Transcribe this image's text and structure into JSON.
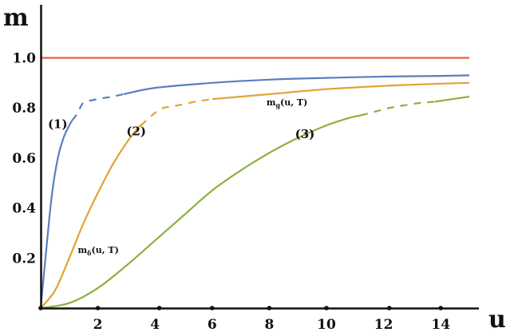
{
  "chart_data": {
    "type": "line",
    "title": "",
    "xlabel": "u",
    "ylabel": "m",
    "xlim": [
      0,
      15.5
    ],
    "ylim": [
      0,
      1.1
    ],
    "grid": false,
    "x_ticks": [
      2,
      4,
      6,
      8,
      10,
      12,
      14
    ],
    "x_tick_labels": [
      "2",
      "4",
      "6",
      "8",
      "10",
      "12",
      "14"
    ],
    "y_ticks": [
      0.2,
      0.4,
      0.6,
      0.8,
      1.0
    ],
    "y_tick_labels": [
      "0.2",
      "0.4",
      "0.6",
      "0.8",
      "1.0"
    ],
    "x_axis_points": [
      0,
      2,
      4.15,
      6,
      8,
      10,
      12.2,
      14
    ],
    "series": [
      {
        "color": "#e3623c",
        "solid": [
          [
            0,
            1.0
          ],
          [
            15,
            1.0
          ]
        ]
      },
      {
        "color": "#5a7fbe",
        "solid": [
          [
            0,
            0
          ],
          [
            0.2,
            0.24
          ],
          [
            0.4,
            0.46
          ],
          [
            0.6,
            0.6
          ],
          [
            0.8,
            0.68
          ],
          [
            1.0,
            0.73
          ],
          [
            1.1,
            0.75
          ]
        ],
        "dashed": [
          [
            1.1,
            0.75
          ],
          [
            1.3,
            0.78
          ],
          [
            1.5,
            0.82
          ],
          [
            2.0,
            0.835
          ],
          [
            2.5,
            0.845
          ],
          [
            2.9,
            0.855
          ]
        ],
        "solid_tail": [
          [
            2.9,
            0.855
          ],
          [
            4,
            0.88
          ],
          [
            6,
            0.9
          ],
          [
            8,
            0.913
          ],
          [
            10,
            0.92
          ],
          [
            12,
            0.925
          ],
          [
            14,
            0.928
          ],
          [
            15,
            0.93
          ]
        ]
      },
      {
        "color": "#e2a336",
        "solid": [
          [
            0,
            0
          ],
          [
            0.5,
            0.07
          ],
          [
            1.0,
            0.2
          ],
          [
            1.5,
            0.34
          ],
          [
            2.0,
            0.46
          ],
          [
            2.5,
            0.57
          ],
          [
            3.0,
            0.66
          ],
          [
            3.4,
            0.72
          ],
          [
            3.5,
            0.73
          ]
        ],
        "dashed": [
          [
            3.5,
            0.73
          ],
          [
            3.7,
            0.75
          ],
          [
            4.0,
            0.78
          ],
          [
            4.3,
            0.8
          ],
          [
            4.8,
            0.81
          ],
          [
            5.4,
            0.825
          ],
          [
            6.0,
            0.835
          ]
        ],
        "solid_tail": [
          [
            6.0,
            0.835
          ],
          [
            8,
            0.855
          ],
          [
            10,
            0.875
          ],
          [
            12,
            0.888
          ],
          [
            14,
            0.897
          ],
          [
            15,
            0.9
          ]
        ]
      },
      {
        "color": "#8db03e",
        "solid": [
          [
            0,
            0
          ],
          [
            1,
            0.02
          ],
          [
            2,
            0.08
          ],
          [
            3,
            0.17
          ],
          [
            4,
            0.27
          ],
          [
            5,
            0.37
          ],
          [
            6,
            0.47
          ],
          [
            7,
            0.55
          ],
          [
            8,
            0.62
          ],
          [
            9,
            0.68
          ],
          [
            10,
            0.73
          ],
          [
            10.8,
            0.76
          ],
          [
            11.2,
            0.77
          ]
        ],
        "dashed": [
          [
            11.2,
            0.77
          ],
          [
            11.7,
            0.785
          ],
          [
            12.2,
            0.8
          ],
          [
            12.7,
            0.81
          ],
          [
            13.3,
            0.82
          ],
          [
            13.8,
            0.825
          ]
        ],
        "solid_tail": [
          [
            13.8,
            0.825
          ],
          [
            14.4,
            0.835
          ],
          [
            15,
            0.845
          ]
        ]
      }
    ],
    "annotations": [
      {
        "text": "(1)",
        "x": 0.25,
        "y": 0.72,
        "size": "large"
      },
      {
        "text": "(2)",
        "x": 3.0,
        "y": 0.69,
        "size": "large"
      },
      {
        "text": "(3)",
        "x": 8.9,
        "y": 0.68,
        "size": "large"
      },
      {
        "text": "m",
        "sub": "g",
        "rest": "(u, T)",
        "x": 7.9,
        "y": 0.81,
        "size": "small"
      },
      {
        "text": "m",
        "sub": "δ",
        "rest": "(u, T)",
        "x": 1.3,
        "y": 0.22,
        "size": "small"
      }
    ]
  }
}
